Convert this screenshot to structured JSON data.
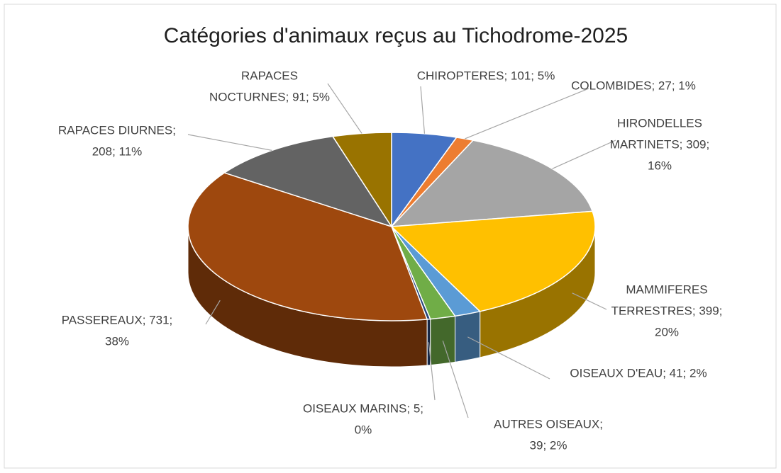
{
  "chart_data": {
    "type": "pie3d",
    "title": "Catégories d'animaux reçus au Tichodrome-2025",
    "values": [
      101,
      27,
      309,
      399,
      41,
      39,
      5,
      731,
      208,
      91
    ],
    "value_labels": [
      [
        "CHIROPTERES; 101; 5%"
      ],
      [
        "COLOMBIDES; 27; 1%"
      ],
      [
        "HIRONDELLES",
        "MARTINETS; 309;",
        "16%"
      ],
      [
        "MAMMIFERES",
        "TERRESTRES; 399;",
        "20%"
      ],
      [
        "OISEAUX D'EAU; 41; 2%"
      ],
      [
        "AUTRES OISEAUX;",
        "39; 2%"
      ],
      [
        "OISEAUX MARINS; 5;",
        "0%"
      ],
      [
        "PASSEREAUX; 731;",
        "38%"
      ],
      [
        "RAPACES DIURNES;",
        "208; 11%"
      ],
      [
        "RAPACES",
        "NOCTURNES; 91; 5%"
      ]
    ],
    "colors": [
      "#4472c4",
      "#ed7d31",
      "#a5a5a5",
      "#ffc000",
      "#5b9bd5",
      "#70ad47",
      "#264478",
      "#9e480e",
      "#636363",
      "#997300"
    ]
  }
}
